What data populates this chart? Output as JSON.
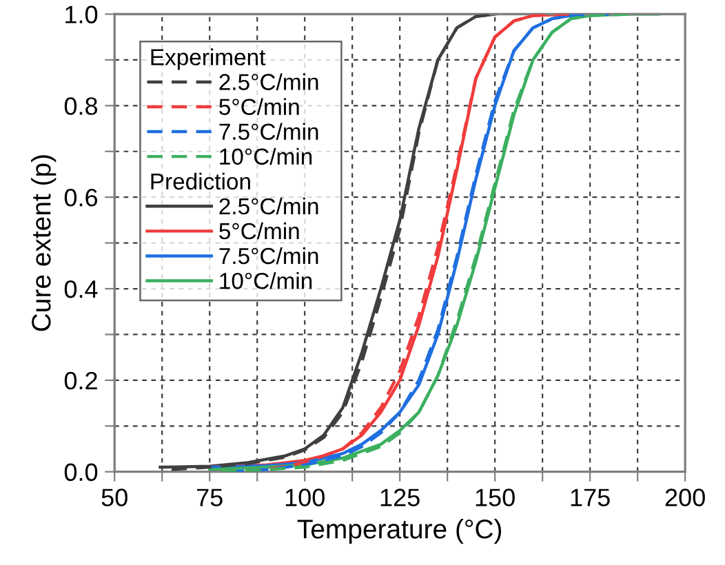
{
  "chart_data": {
    "type": "line",
    "xlabel": "Temperature (°C)",
    "ylabel": "Cure extent (p)",
    "xlim": [
      50,
      200
    ],
    "ylim": [
      0,
      1.0
    ],
    "xticks": [
      50,
      {
        "value": 62.5,
        "label": null
      },
      75,
      {
        "value": 87.5,
        "label": null
      },
      100,
      {
        "value": 112.5,
        "label": null
      },
      125,
      {
        "value": 137.5,
        "label": null
      },
      150,
      {
        "value": 162.5,
        "label": null
      },
      175,
      {
        "value": 187.5,
        "label": null
      },
      200
    ],
    "yticks": [
      {
        "value": 0,
        "label": "0.0"
      },
      {
        "value": 0.1,
        "label": null
      },
      {
        "value": 0.2,
        "label": "0.2"
      },
      {
        "value": 0.3,
        "label": null
      },
      {
        "value": 0.4,
        "label": "0.4"
      },
      {
        "value": 0.5,
        "label": null
      },
      {
        "value": 0.6,
        "label": "0.6"
      },
      {
        "value": 0.7,
        "label": null
      },
      {
        "value": 0.8,
        "label": "0.8"
      },
      {
        "value": 0.9,
        "label": null
      },
      {
        "value": 1.0,
        "label": "1.0"
      }
    ],
    "grid": true,
    "legend": "top left",
    "marker": "none",
    "annotations": [
      "Experiment",
      "Prediction"
    ],
    "series": [
      {
        "name": "2.5°C/min",
        "color": "#404040",
        "line_style": "dashed",
        "x": [
          65,
          75,
          85,
          95,
          100,
          105,
          110,
          115,
          120,
          125,
          130,
          135,
          140,
          145,
          150
        ],
        "values": [
          0.005,
          0.01,
          0.018,
          0.032,
          0.048,
          0.075,
          0.13,
          0.24,
          0.38,
          0.53,
          0.74,
          0.9,
          0.97,
          0.995,
          1.0
        ]
      },
      {
        "name": "5°C/min",
        "color": "#f03c3c",
        "line_style": "dashed",
        "x": [
          78,
          90,
          100,
          110,
          115,
          120,
          125,
          130,
          135,
          140,
          145,
          150,
          155,
          160,
          170
        ],
        "values": [
          0.0,
          0.005,
          0.02,
          0.05,
          0.085,
          0.14,
          0.22,
          0.34,
          0.49,
          0.67,
          0.86,
          0.95,
          0.985,
          0.997,
          1.0
        ]
      },
      {
        "name": "7.5°C/min",
        "color": "#1f6fe0",
        "line_style": "dashed",
        "x": [
          80,
          90,
          100,
          110,
          115,
          120,
          125,
          130,
          135,
          140,
          145,
          150,
          155,
          160,
          165,
          170,
          180
        ],
        "values": [
          0.0,
          0.005,
          0.015,
          0.035,
          0.055,
          0.085,
          0.13,
          0.2,
          0.31,
          0.47,
          0.65,
          0.81,
          0.92,
          0.97,
          0.99,
          0.997,
          1.0
        ]
      },
      {
        "name": "10°C/min",
        "color": "#3cb060",
        "line_style": "dashed",
        "x": [
          78,
          90,
          100,
          110,
          120,
          125,
          130,
          135,
          140,
          145,
          150,
          155,
          160,
          165,
          170,
          175,
          185
        ],
        "values": [
          0.0,
          0.005,
          0.01,
          0.025,
          0.055,
          0.085,
          0.13,
          0.21,
          0.33,
          0.47,
          0.63,
          0.79,
          0.9,
          0.96,
          0.99,
          0.997,
          1.0
        ]
      },
      {
        "name": "2.5°C/min",
        "color": "#404040",
        "line_style": "solid",
        "x": [
          62,
          75,
          85,
          95,
          100,
          105,
          110,
          115,
          120,
          125,
          130,
          135,
          140,
          145,
          150
        ],
        "values": [
          0.01,
          0.012,
          0.02,
          0.035,
          0.05,
          0.08,
          0.14,
          0.26,
          0.4,
          0.55,
          0.75,
          0.9,
          0.97,
          0.995,
          1.0
        ]
      },
      {
        "name": "5°C/min",
        "color": "#f03c3c",
        "line_style": "solid",
        "x": [
          75,
          90,
          100,
          105,
          110,
          115,
          120,
          125,
          130,
          135,
          140,
          145,
          150,
          155,
          160,
          170
        ],
        "values": [
          0.01,
          0.015,
          0.025,
          0.035,
          0.05,
          0.08,
          0.13,
          0.2,
          0.32,
          0.47,
          0.66,
          0.86,
          0.95,
          0.985,
          0.997,
          1.0
        ]
      },
      {
        "name": "7.5°C/min",
        "color": "#1f6fe0",
        "line_style": "solid",
        "x": [
          75,
          90,
          100,
          110,
          115,
          120,
          125,
          130,
          135,
          140,
          145,
          150,
          155,
          160,
          165,
          170,
          180
        ],
        "values": [
          0.01,
          0.013,
          0.02,
          0.04,
          0.06,
          0.09,
          0.13,
          0.19,
          0.3,
          0.46,
          0.64,
          0.8,
          0.92,
          0.97,
          0.99,
          0.997,
          1.0
        ]
      },
      {
        "name": "10°C/min",
        "color": "#3cb060",
        "line_style": "solid",
        "x": [
          75,
          90,
          100,
          110,
          120,
          125,
          130,
          135,
          140,
          145,
          150,
          155,
          160,
          165,
          170,
          175,
          185,
          193
        ],
        "values": [
          0.005,
          0.01,
          0.015,
          0.03,
          0.06,
          0.09,
          0.13,
          0.21,
          0.32,
          0.46,
          0.62,
          0.78,
          0.9,
          0.96,
          0.99,
          0.997,
          1.0,
          1.0
        ]
      }
    ]
  }
}
